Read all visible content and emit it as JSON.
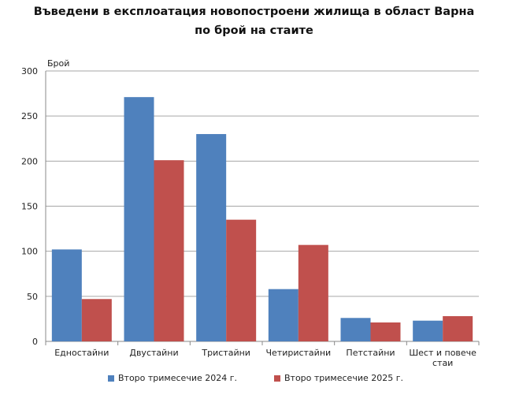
{
  "chart_data": {
    "type": "bar",
    "title": "Въведени в експлоатация новопостроени жилища в област Варна",
    "subtitle": "по брой на стаите",
    "xlabel": "",
    "ylabel": "Брой",
    "ylim": [
      0,
      300
    ],
    "yticks": [
      0,
      50,
      100,
      150,
      200,
      250,
      300
    ],
    "grid": true,
    "legend_position": "bottom",
    "categories": [
      "Едностайни",
      "Двустайни",
      "Тристайни",
      "Четиристайни",
      "Петстайни",
      "Шест и повече стаи"
    ],
    "series": [
      {
        "name": "Второ тримесечие 2024 г.",
        "color": "#4f81bd",
        "values": [
          102,
          271,
          230,
          58,
          26,
          23
        ]
      },
      {
        "name": "Второ тримесечие 2025 г.",
        "color": "#c0504d",
        "values": [
          47,
          201,
          135,
          107,
          21,
          28
        ]
      }
    ]
  }
}
